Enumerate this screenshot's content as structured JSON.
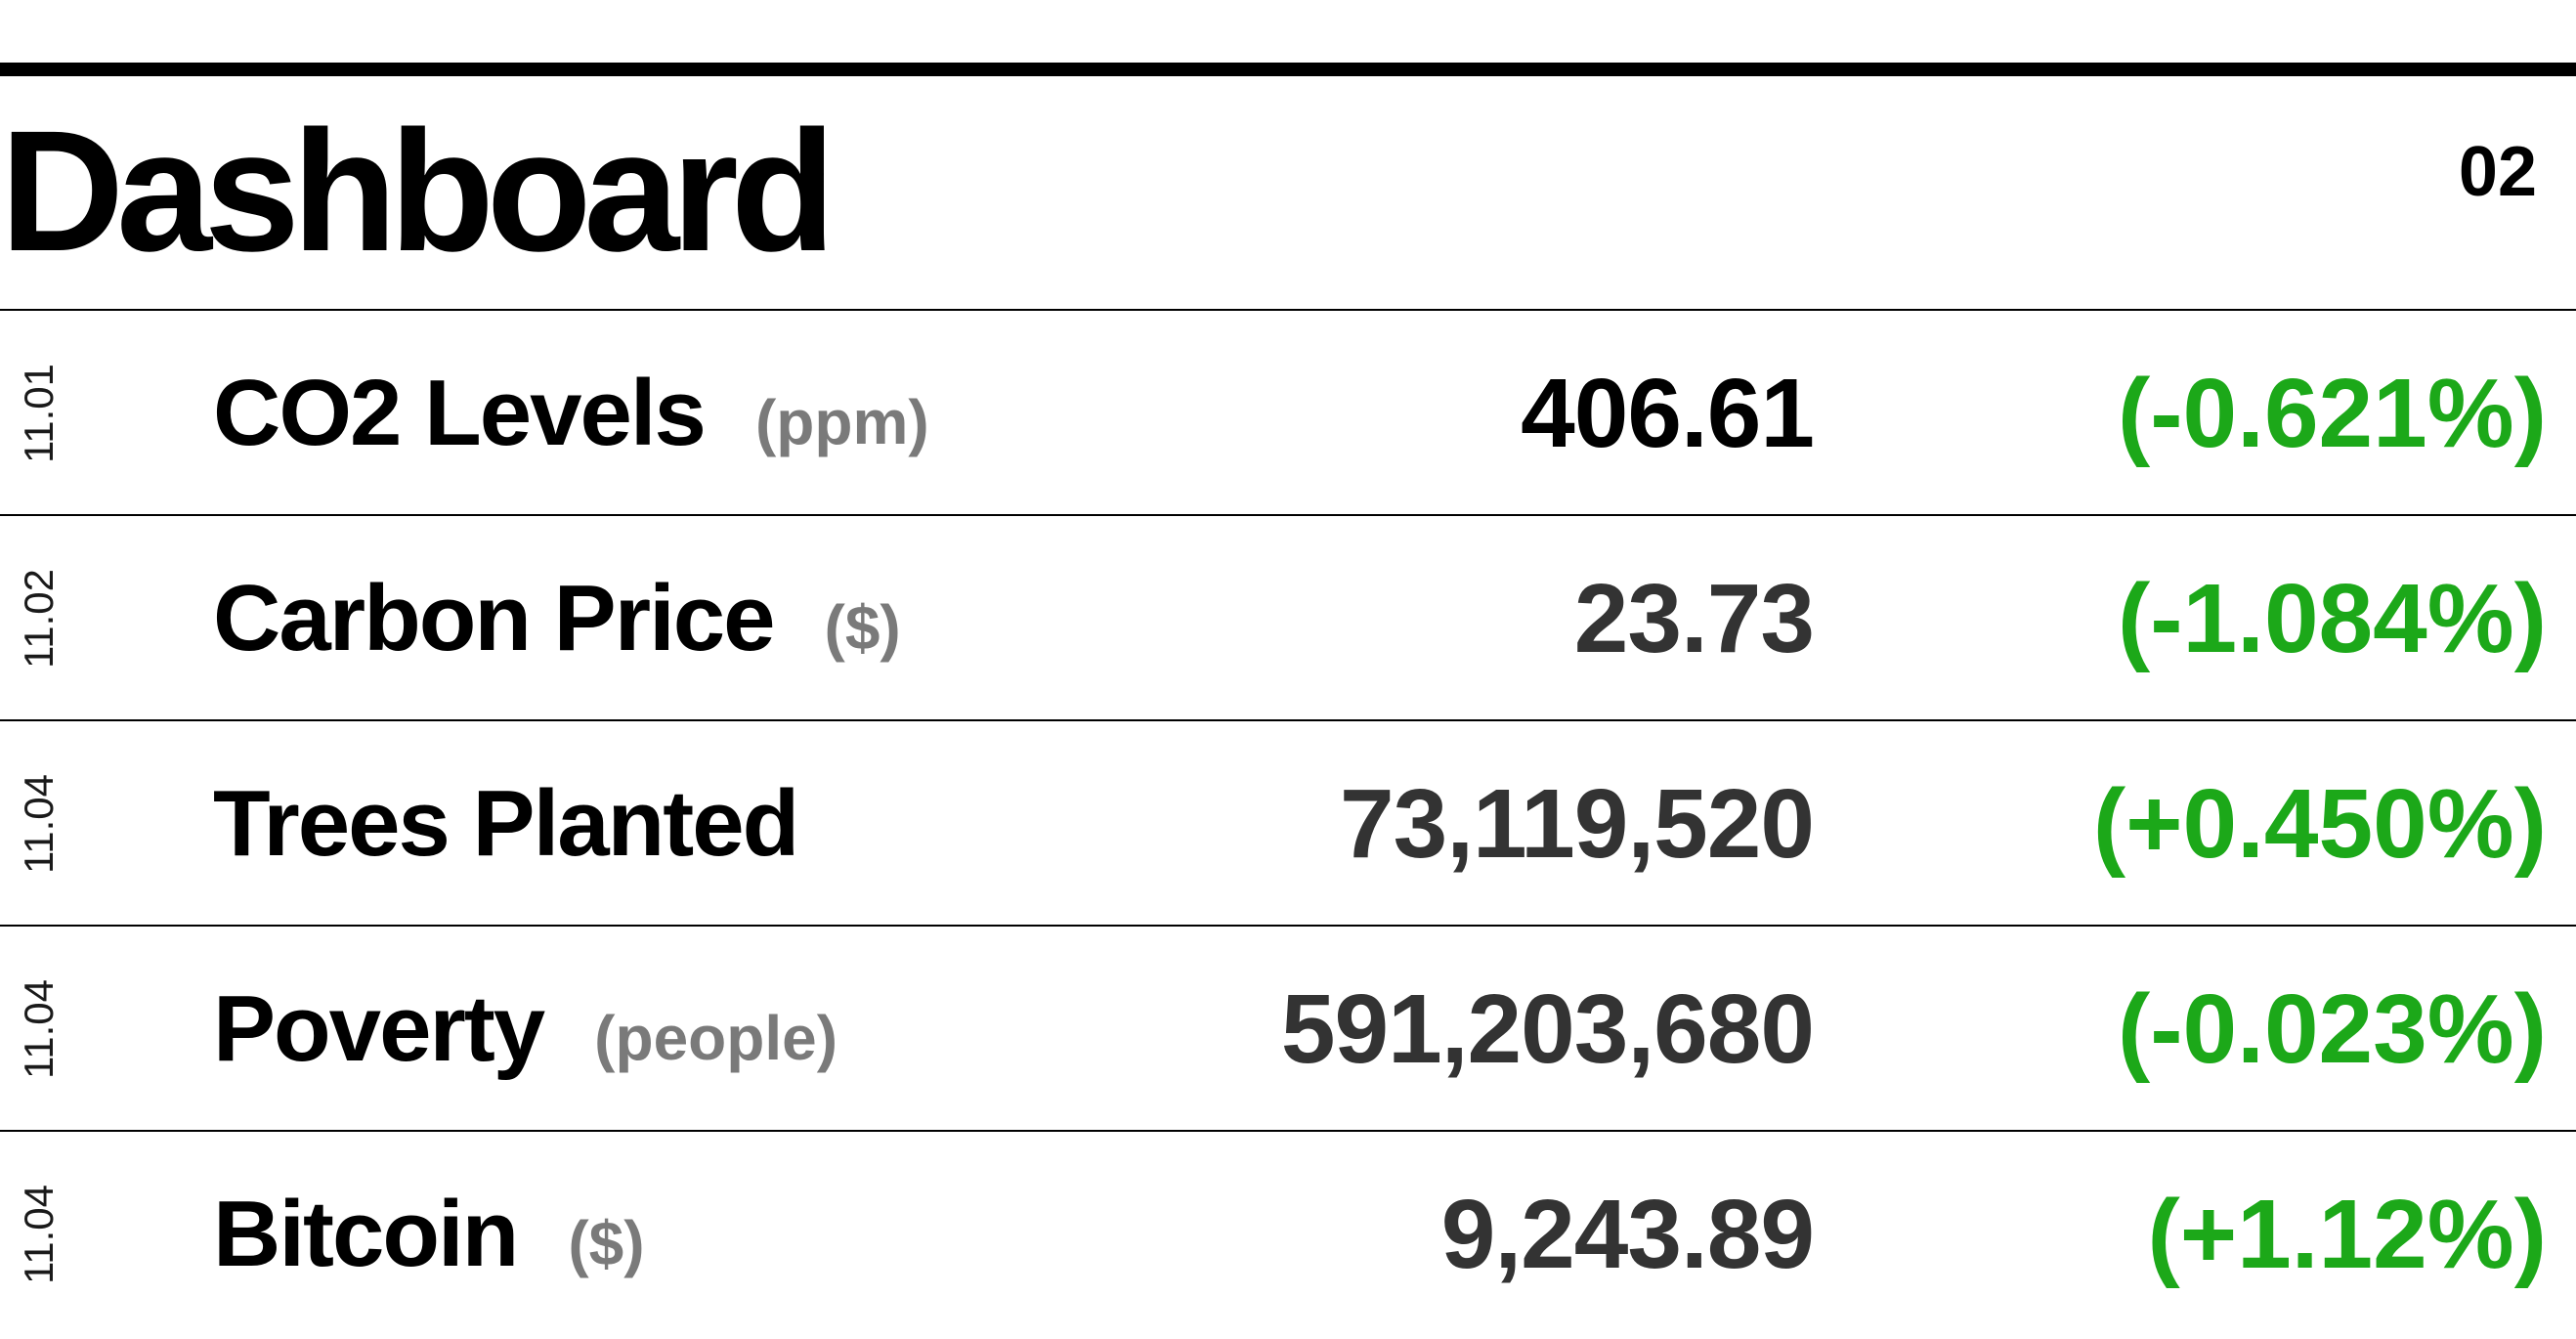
{
  "header": {
    "title": "Dashboard",
    "page_number": "02"
  },
  "colors": {
    "change_positive": "#1ca819",
    "unit_gray": "#7a7a7a",
    "value_dark": "#333333"
  },
  "rows": [
    {
      "code": "11.01",
      "label": "CO2 Levels",
      "unit": "(ppm)",
      "value": "406.61",
      "change": "(-0.621%)"
    },
    {
      "code": "11.02",
      "label": "Carbon Price",
      "unit": "($)",
      "value": "23.73",
      "change": "(-1.084%)"
    },
    {
      "code": "11.04",
      "label": "Trees Planted",
      "unit": "",
      "value": "73,119,520",
      "change": "(+0.450%)"
    },
    {
      "code": "11.04",
      "label": "Poverty",
      "unit": "(people)",
      "value": "591,203,680",
      "change": "(-0.023%)"
    },
    {
      "code": "11.04",
      "label": "Bitcoin",
      "unit": "($)",
      "value": "9,243.89",
      "change": "(+1.12%)"
    }
  ]
}
